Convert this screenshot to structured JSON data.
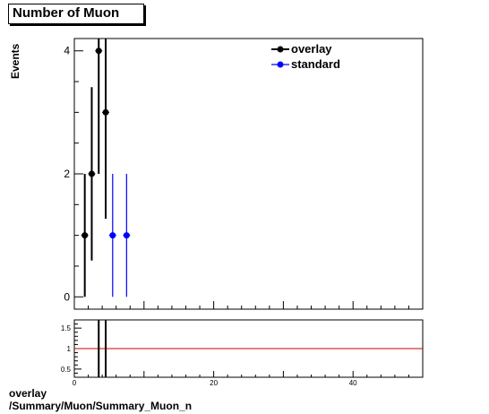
{
  "title": "Number of Muon",
  "ylabel": "Events",
  "footer": {
    "line1": "overlay",
    "line2": "/Summary/Muon/Summary_Muon_n"
  },
  "legend": {
    "placement": "top-right",
    "entries": [
      {
        "label": "overlay",
        "color": "#000000"
      },
      {
        "label": "standard",
        "color": "#0000ff"
      }
    ]
  },
  "chart_data": [
    {
      "type": "scatter",
      "xlim": [
        0,
        50
      ],
      "ylim": [
        -0.2,
        4.2
      ],
      "yticks": [
        0,
        2,
        4
      ],
      "grid": false,
      "series": [
        {
          "name": "overlay",
          "color": "#000000",
          "points": [
            {
              "x": 1.5,
              "y": 1,
              "err": 1.0
            },
            {
              "x": 2.5,
              "y": 2,
              "err": 1.41
            },
            {
              "x": 3.5,
              "y": 4,
              "err": 2.0
            },
            {
              "x": 4.5,
              "y": 3,
              "err": 1.73
            }
          ]
        },
        {
          "name": "standard",
          "color": "#0000ff",
          "points": [
            {
              "x": 5.5,
              "y": 1,
              "err": 1.0
            },
            {
              "x": 7.5,
              "y": 1,
              "err": 1.0
            }
          ]
        }
      ]
    },
    {
      "type": "line",
      "xlim": [
        0,
        50
      ],
      "ylim": [
        0.3,
        1.7
      ],
      "xticks": [
        0,
        20,
        40
      ],
      "yticks": [
        0.5,
        1,
        1.5
      ],
      "reference_line": {
        "y": 1,
        "color": "#cc0000"
      },
      "error_bars": [
        {
          "x": 3.5,
          "low": 0.3,
          "high": 1.7
        },
        {
          "x": 4.5,
          "low": 0.3,
          "high": 1.7
        }
      ]
    }
  ]
}
